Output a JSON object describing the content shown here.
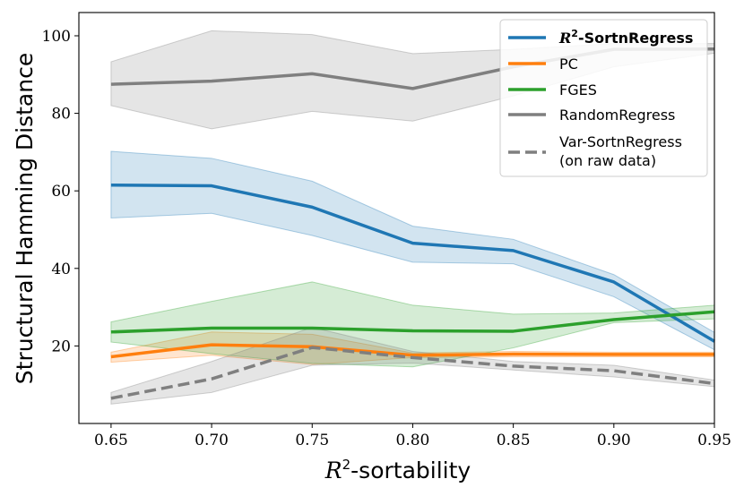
{
  "chart_data": {
    "type": "line",
    "title": "",
    "xlabel_sym": "R",
    "xlabel_sup": "2",
    "xlabel_rest": "-sortability",
    "ylabel": "Structural Hamming Distance",
    "xlim": [
      0.634,
      0.95
    ],
    "ylim": [
      0,
      106
    ],
    "x": [
      0.65,
      0.7,
      0.75,
      0.8,
      0.85,
      0.9,
      0.95
    ],
    "xtick_values": [
      0.65,
      0.7,
      0.75,
      0.8,
      0.85,
      0.9,
      0.95
    ],
    "xtick_labels": [
      "0.65",
      "0.70",
      "0.75",
      "0.80",
      "0.85",
      "0.90",
      "0.95"
    ],
    "ytick_values": [
      20,
      40,
      60,
      80,
      100
    ],
    "ytick_labels": [
      "20",
      "40",
      "60",
      "80",
      "100"
    ],
    "legend_position": "top-right",
    "series": [
      {
        "name_sym": "R",
        "name_sup": "2",
        "name_rest": "-SortnRegress",
        "color": "#1f77b4",
        "style": "solid",
        "values": [
          61.5,
          61.3,
          55.8,
          46.5,
          44.6,
          36.5,
          21.2
        ],
        "lower": [
          53.0,
          54.2,
          48.5,
          41.6,
          41.2,
          32.7,
          19.0
        ],
        "upper": [
          70.2,
          68.4,
          62.5,
          50.9,
          47.5,
          38.4,
          23.5
        ]
      },
      {
        "name": "PC",
        "color": "#ff7f0e",
        "style": "solid",
        "values": [
          17.2,
          20.3,
          19.8,
          17.6,
          17.9,
          17.8,
          17.8
        ],
        "lower": [
          15.8,
          17.6,
          15.2,
          17.0,
          17.2,
          17.2,
          17.2
        ],
        "upper": [
          18.4,
          23.6,
          23.0,
          18.2,
          18.6,
          18.4,
          18.4
        ]
      },
      {
        "name": "FGES",
        "color": "#2ca02c",
        "style": "solid",
        "values": [
          23.6,
          24.6,
          24.6,
          23.9,
          23.8,
          26.8,
          28.8
        ],
        "lower": [
          21.0,
          18.0,
          15.5,
          14.6,
          19.5,
          26.0,
          27.0
        ],
        "upper": [
          26.2,
          31.5,
          36.5,
          30.5,
          28.2,
          28.5,
          30.5
        ]
      },
      {
        "name": "RandomRegress",
        "color": "#7f7f7f",
        "style": "solid",
        "values": [
          87.5,
          88.3,
          90.2,
          86.4,
          92.0,
          96.5,
          96.6
        ],
        "lower": [
          82.0,
          76.0,
          80.5,
          78.0,
          84.5,
          92.0,
          95.5
        ],
        "upper": [
          93.3,
          101.3,
          100.3,
          95.4,
          96.5,
          98.0,
          98.0
        ]
      },
      {
        "name_line1": "Var-SortnRegress",
        "name_line2": "(on raw data)",
        "color": "#7f7f7f",
        "style": "dashed",
        "values": [
          6.5,
          11.5,
          19.6,
          17.0,
          14.8,
          13.6,
          10.3
        ],
        "lower": [
          5.0,
          8.0,
          15.0,
          15.6,
          13.8,
          12.0,
          9.5
        ],
        "upper": [
          8.0,
          16.0,
          24.8,
          18.6,
          16.0,
          15.0,
          11.2
        ]
      }
    ]
  }
}
